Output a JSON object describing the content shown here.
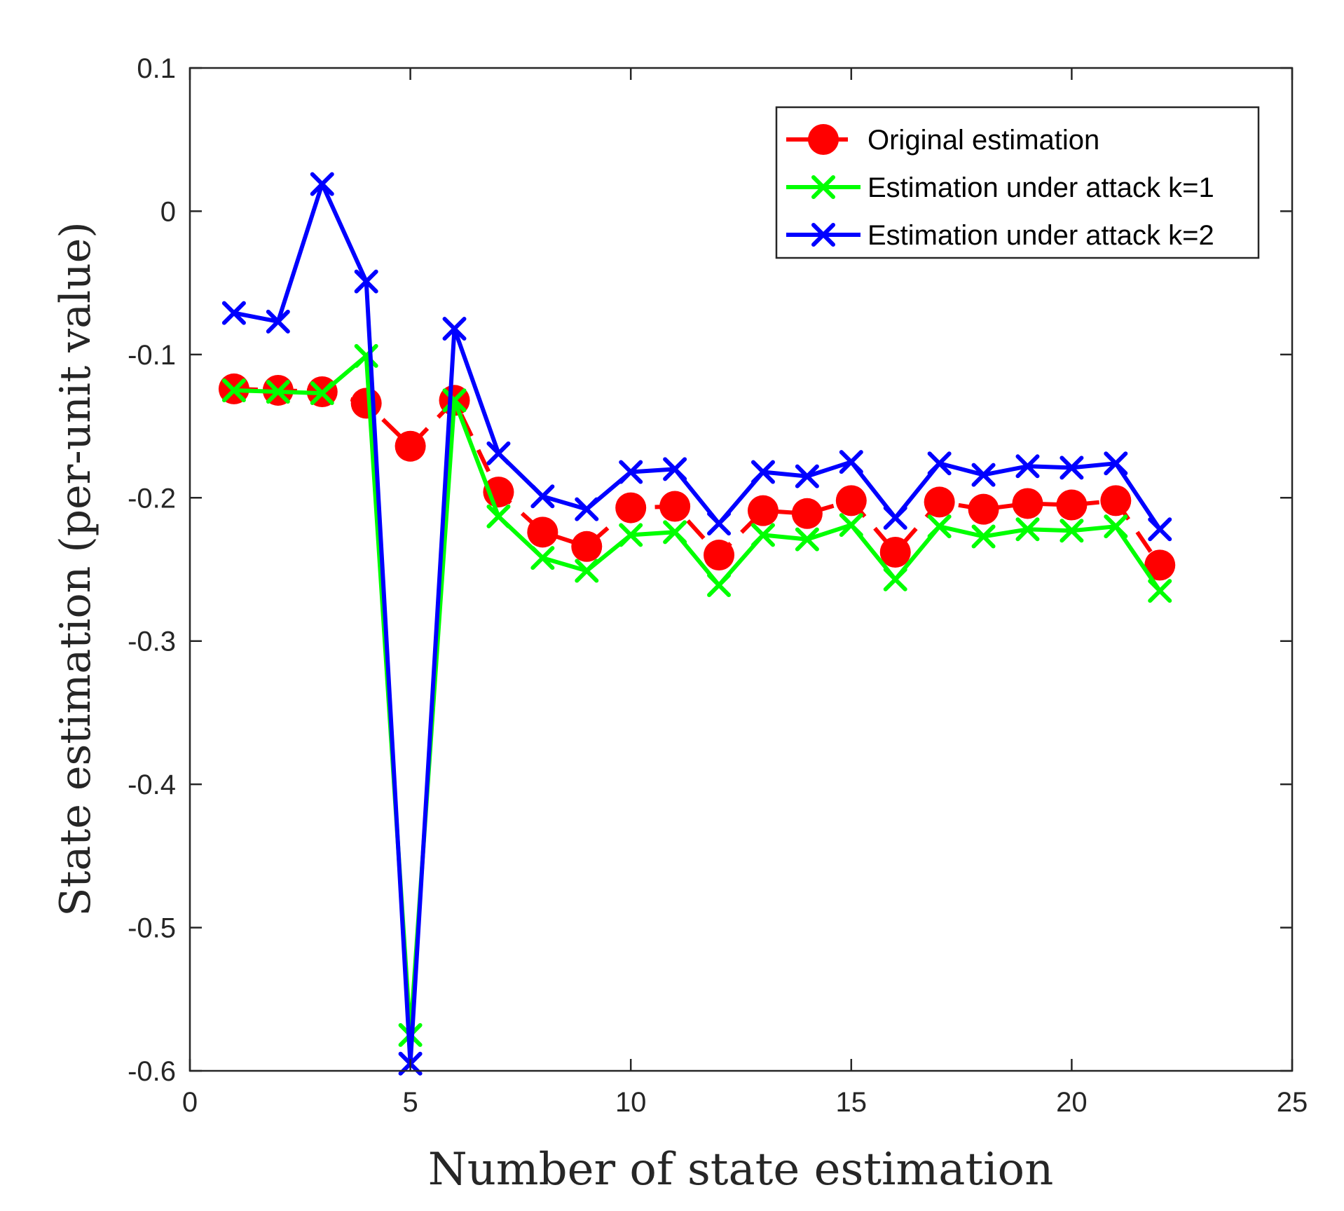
{
  "chart_data": {
    "type": "line",
    "xlabel": "Number of state estimation",
    "ylabel": "State estimation (per-unit value)",
    "xlim": [
      0,
      25
    ],
    "ylim": [
      -0.6,
      0.1
    ],
    "xticks": [
      0,
      5,
      10,
      15,
      20,
      25
    ],
    "yticks": [
      -0.6,
      -0.5,
      -0.4,
      -0.3,
      -0.2,
      -0.1,
      0,
      0.1
    ],
    "xtick_labels": [
      "0",
      "5",
      "10",
      "15",
      "20",
      "25"
    ],
    "ytick_labels": [
      "-0.6",
      "-0.5",
      "-0.4",
      "-0.3",
      "-0.2",
      "-0.1",
      "0",
      "0.1"
    ],
    "grid": false,
    "legend_position": "top-right",
    "x": [
      1,
      2,
      3,
      4,
      5,
      6,
      7,
      8,
      9,
      10,
      11,
      12,
      13,
      14,
      15,
      16,
      17,
      18,
      19,
      20,
      21,
      22
    ],
    "series": [
      {
        "name": "Original estimation",
        "color": "#ff0000",
        "line_style": "dashed",
        "marker": "circle",
        "values": [
          -0.124,
          -0.125,
          -0.126,
          -0.134,
          -0.164,
          -0.132,
          -0.196,
          -0.224,
          -0.234,
          -0.207,
          -0.206,
          -0.24,
          -0.209,
          -0.211,
          -0.202,
          -0.238,
          -0.203,
          -0.208,
          -0.204,
          -0.205,
          -0.202,
          -0.247
        ]
      },
      {
        "name": "Estimation under attack k=1",
        "color": "#00ff00",
        "line_style": "solid",
        "marker": "x",
        "values": [
          -0.125,
          -0.126,
          -0.127,
          -0.101,
          -0.575,
          -0.132,
          -0.213,
          -0.242,
          -0.251,
          -0.226,
          -0.224,
          -0.261,
          -0.226,
          -0.229,
          -0.219,
          -0.257,
          -0.22,
          -0.227,
          -0.222,
          -0.223,
          -0.22,
          -0.265
        ]
      },
      {
        "name": "Estimation under attack k=2",
        "color": "#0000ff",
        "line_style": "solid",
        "marker": "x",
        "values": [
          -0.071,
          -0.077,
          0.019,
          -0.049,
          -0.595,
          -0.082,
          -0.169,
          -0.199,
          -0.208,
          -0.182,
          -0.18,
          -0.218,
          -0.182,
          -0.185,
          -0.175,
          -0.214,
          -0.176,
          -0.184,
          -0.178,
          -0.179,
          -0.176,
          -0.222
        ]
      }
    ]
  }
}
